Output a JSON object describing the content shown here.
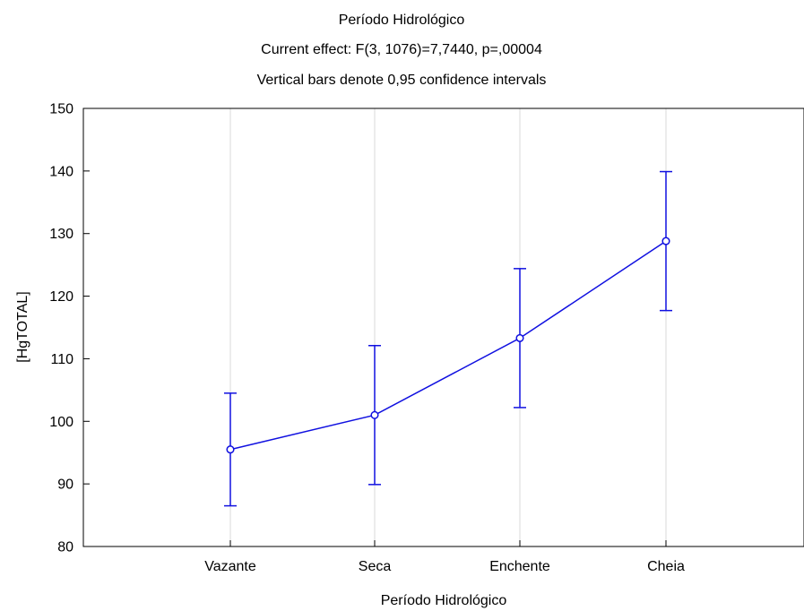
{
  "chart_data": {
    "type": "line",
    "title": "Período Hidrológico",
    "subtitle": [
      "Current effect: F(3, 1076)=7,7440, p=,00004",
      "Vertical bars denote 0,95 confidence intervals"
    ],
    "xlabel": "Período Hidrológico",
    "ylabel": "[HgTOTAL]",
    "categories": [
      "Vazante",
      "Seca",
      "Enchente",
      "Cheia"
    ],
    "series": [
      {
        "values": [
          95.5,
          101.0,
          113.3,
          128.8
        ],
        "ci_low": [
          86.5,
          89.9,
          102.2,
          117.7
        ],
        "ci_high": [
          104.5,
          112.1,
          124.4,
          139.9
        ]
      }
    ],
    "ylim": [
      80,
      150
    ],
    "yticks": [
      80,
      90,
      100,
      110,
      120,
      130,
      140,
      150
    ],
    "grid": true,
    "colors": {
      "series": "#1010e0",
      "grid": "#d8d8d8",
      "axis": "#000000"
    }
  }
}
